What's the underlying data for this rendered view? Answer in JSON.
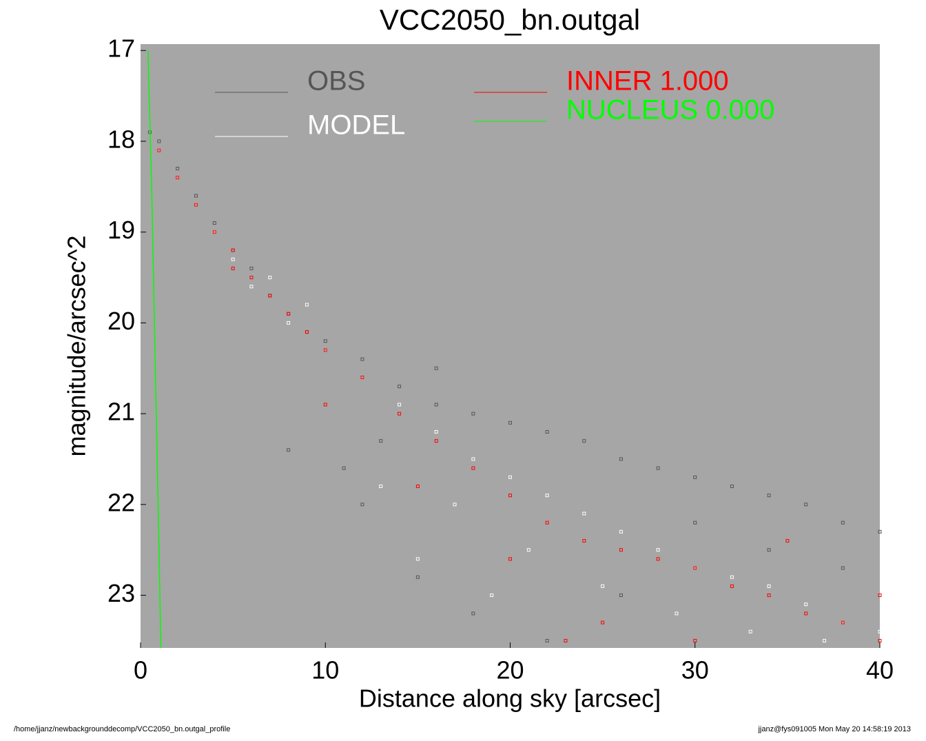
{
  "chart_data": {
    "type": "scatter",
    "title": "VCC2050_bn.outgal",
    "x_label": "Distance along sky [arcsec]",
    "y_label": "magnitude/arcsec^2",
    "footer_left": "/home/jjanz/newbackgrounddecomp/VCC2050_bn.outgal_profile",
    "footer_right": "jjanz@fys091005  Mon May 20 14:58:19 2013",
    "xlim": [
      0,
      40
    ],
    "xticks": [
      0,
      10,
      20,
      30,
      40
    ],
    "ylim": [
      23.58,
      16.93
    ],
    "yticks": [
      17,
      18,
      19,
      20,
      21,
      22,
      23
    ],
    "background": "#a6a6a6",
    "series": [
      {
        "name": "OBS",
        "color": "#555555",
        "style": "points",
        "x": [
          0.5,
          1,
          2,
          3,
          4,
          5,
          6,
          7,
          8,
          9,
          10,
          12,
          14,
          16,
          18,
          20,
          22,
          24,
          26,
          28,
          30,
          32,
          34,
          36,
          38,
          40,
          8,
          12,
          15,
          18,
          22,
          26,
          30,
          34,
          38,
          11,
          13,
          16
        ],
        "values": [
          17.9,
          18.0,
          18.3,
          18.6,
          18.9,
          19.2,
          19.4,
          19.7,
          19.9,
          20.1,
          20.2,
          20.4,
          20.7,
          20.9,
          21.0,
          21.1,
          21.2,
          21.3,
          21.5,
          21.6,
          21.7,
          21.8,
          21.9,
          22.0,
          22.2,
          22.3,
          21.4,
          22.0,
          22.8,
          23.2,
          23.5,
          23.0,
          22.2,
          22.5,
          22.7,
          21.6,
          21.3,
          20.5
        ]
      },
      {
        "name": "MODEL",
        "color": "#ffffff",
        "style": "points",
        "x": [
          1,
          2,
          3,
          4,
          5,
          6,
          8,
          10,
          12,
          14,
          16,
          18,
          20,
          22,
          24,
          26,
          28,
          30,
          32,
          34,
          36,
          38,
          40,
          7,
          9,
          13,
          17,
          21,
          25,
          29,
          33,
          37,
          15,
          19
        ],
        "values": [
          18.1,
          18.4,
          18.7,
          19.0,
          19.3,
          19.6,
          20.0,
          20.3,
          20.6,
          20.9,
          21.2,
          21.5,
          21.7,
          21.9,
          22.1,
          22.3,
          22.5,
          22.7,
          22.8,
          22.9,
          23.1,
          23.3,
          23.4,
          19.5,
          19.8,
          21.8,
          22.0,
          22.5,
          22.9,
          23.2,
          23.4,
          23.5,
          22.6,
          23.0
        ]
      },
      {
        "name": "INNER  1.000",
        "color": "#ff0000",
        "style": "points",
        "x": [
          1,
          2,
          3,
          4,
          5,
          6,
          7,
          8,
          9,
          10,
          12,
          14,
          16,
          18,
          20,
          22,
          24,
          26,
          28,
          30,
          32,
          34,
          36,
          38,
          40,
          5,
          10,
          15,
          20,
          25,
          30,
          35,
          40,
          23
        ],
        "values": [
          18.1,
          18.4,
          18.7,
          19.0,
          19.2,
          19.5,
          19.7,
          19.9,
          20.1,
          20.3,
          20.6,
          21.0,
          21.3,
          21.6,
          21.9,
          22.2,
          22.4,
          22.5,
          22.6,
          22.7,
          22.9,
          23.0,
          23.2,
          23.3,
          23.5,
          19.4,
          20.9,
          21.8,
          22.6,
          23.3,
          23.5,
          22.4,
          23.0,
          23.5
        ]
      },
      {
        "name": "NUCLEUS  0.000",
        "color": "#00ff00",
        "style": "line",
        "x": [
          0.4,
          0.6,
          0.8,
          1.0,
          1.1
        ],
        "values": [
          17.0,
          18.5,
          20.5,
          22.5,
          23.58
        ]
      }
    ]
  }
}
